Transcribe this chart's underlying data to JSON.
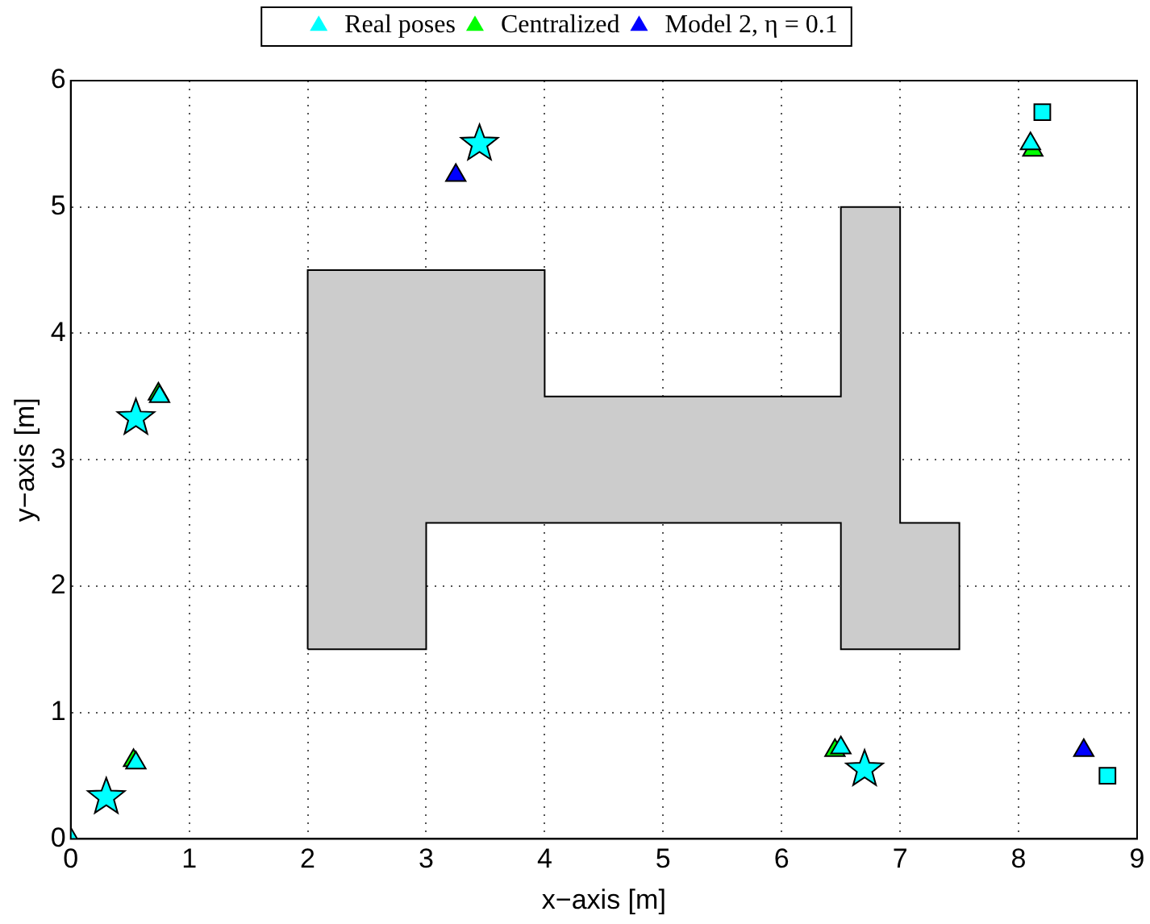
{
  "chart_data": {
    "type": "scatter",
    "xlabel": "x−axis [m]",
    "ylabel": "y−axis [m]",
    "xlim": [
      0,
      9
    ],
    "ylim": [
      0,
      6
    ],
    "xticks": [
      0,
      1,
      2,
      3,
      4,
      5,
      6,
      7,
      8,
      9
    ],
    "yticks": [
      0,
      1,
      2,
      3,
      4,
      5,
      6
    ],
    "grid": true,
    "legend": "top",
    "line_style": "dotted",
    "series": [
      {
        "type": "area",
        "color": "#cccccc",
        "x": [
          2,
          2,
          4,
          4,
          6.5,
          6.5,
          7,
          7,
          7.5,
          7.5,
          6.5,
          6.5,
          3,
          3,
          2
        ],
        "values": [
          1.5,
          4.5,
          4.5,
          3.5,
          3.5,
          5,
          5,
          2.5,
          2.5,
          1.5,
          1.5,
          2.5,
          2.5,
          1.5,
          1.5
        ]
      },
      {
        "name": "Real poses",
        "color": "#00ffff",
        "marker": "triangle",
        "x": [
          0,
          0.75,
          0.55,
          8.1,
          6.5
        ],
        "values": [
          0,
          3.5,
          0.6,
          5.5,
          0.72
        ]
      },
      {
        "name": "Centralized",
        "color": "#00ff00",
        "marker": "triangle",
        "x": [
          0.74,
          0.53,
          8.12,
          6.45
        ],
        "values": [
          3.52,
          0.62,
          5.45,
          0.7
        ]
      },
      {
        "name": "Model 2, η = 0.1",
        "color": "#0000ff",
        "marker": "triangle",
        "x": [
          3.25,
          8.55
        ],
        "values": [
          5.25,
          0.7
        ]
      },
      {
        "color": "#00ffff",
        "marker": "star",
        "x": [
          0.55,
          0.3,
          3.45,
          6.7
        ],
        "values": [
          3.33,
          0.33,
          5.5,
          0.55
        ]
      },
      {
        "color": "#00ffff",
        "marker": "square",
        "x": [
          8.2,
          8.75
        ],
        "values": [
          5.75,
          0.5
        ]
      }
    ]
  }
}
